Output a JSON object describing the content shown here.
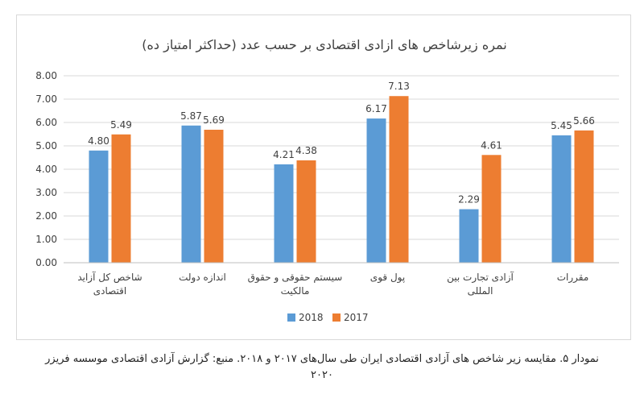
{
  "caption": {
    "line1": "نمودار ۵. مقایسه زیر شاخص های آزادی اقتصادی ایران طی سال‌های ۲۰۱۷ و ۲۰۱۸. منبع: گزارش آزادی اقتصادی موسسه فریزر",
    "line2": "۲۰۲۰"
  },
  "chart_data": {
    "type": "bar",
    "title": "نمره زیرشاخص های ازادی اقتصادی بر حسب عدد (حداکثر امتیاز ده)",
    "categories": [
      [
        "شاخص کل آزاید",
        "اقتصادی"
      ],
      [
        "اندازه دولت"
      ],
      [
        "سیستم حقوقی و حقوق",
        "مالکیت"
      ],
      [
        "پول قوی"
      ],
      [
        "آزادی تجارت بین",
        "المللی"
      ],
      [
        "مقررات"
      ]
    ],
    "series": [
      {
        "name": "2018",
        "color": "#5b9bd5",
        "values": [
          4.8,
          5.87,
          4.21,
          6.17,
          2.29,
          5.45
        ]
      },
      {
        "name": "2017",
        "color": "#ed7d31",
        "values": [
          5.49,
          5.69,
          4.38,
          7.13,
          4.61,
          5.66
        ]
      }
    ],
    "ylim": [
      0,
      8
    ],
    "yticks": [
      "0.00",
      "1.00",
      "2.00",
      "3.00",
      "4.00",
      "5.00",
      "6.00",
      "7.00",
      "8.00"
    ],
    "grid": true,
    "legend_position": "bottom"
  }
}
